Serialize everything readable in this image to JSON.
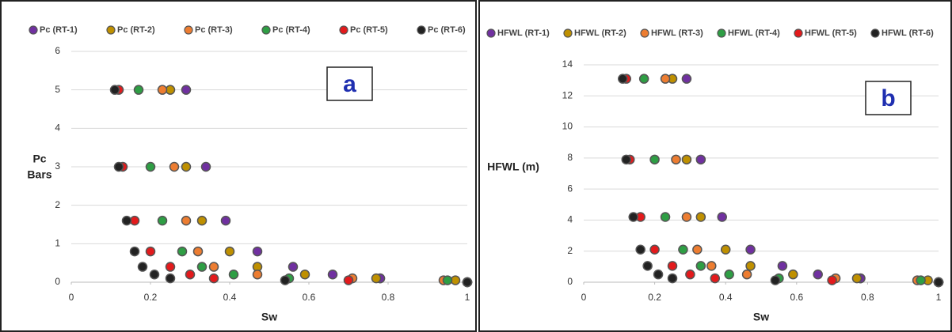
{
  "chart_data": [
    {
      "type": "scatter",
      "annotation": "a",
      "xlabel": "Sw",
      "ylabel": [
        "Pc",
        "Bars"
      ],
      "xlim": [
        0,
        1
      ],
      "xticks": [
        0,
        0.2,
        0.4,
        0.6,
        0.8,
        1
      ],
      "ylim": [
        0,
        6
      ],
      "yticks": [
        0,
        1,
        2,
        3,
        4,
        5,
        6
      ],
      "grid": true,
      "series": [
        {
          "name": "Pc (RT-1)",
          "color": "#7030a0",
          "x": [
            0.29,
            0.34,
            0.39,
            0.47,
            0.56,
            0.66,
            0.78,
            0.78,
            1.0
          ],
          "values": [
            5,
            3,
            1.6,
            0.8,
            0.4,
            0.2,
            0.1,
            0.1,
            0
          ]
        },
        {
          "name": "Pc (RT-2)",
          "color": "#bf9000",
          "x": [
            0.25,
            0.29,
            0.33,
            0.4,
            0.47,
            0.59,
            0.77,
            0.97,
            1.0
          ],
          "values": [
            5,
            3,
            1.6,
            0.8,
            0.4,
            0.2,
            0.1,
            0.05,
            0
          ]
        },
        {
          "name": "Pc (RT-3)",
          "color": "#ed7d31",
          "x": [
            0.23,
            0.26,
            0.29,
            0.32,
            0.36,
            0.47,
            0.71,
            0.94,
            1.0
          ],
          "values": [
            5,
            3,
            1.6,
            0.8,
            0.4,
            0.2,
            0.1,
            0.05,
            0
          ]
        },
        {
          "name": "Pc (RT-4)",
          "color": "#2e9e44",
          "x": [
            0.17,
            0.2,
            0.23,
            0.28,
            0.33,
            0.41,
            0.55,
            0.95,
            1.0
          ],
          "values": [
            5,
            3,
            1.6,
            0.8,
            0.4,
            0.2,
            0.1,
            0.05,
            0
          ]
        },
        {
          "name": "Pc (RT-5)",
          "color": "#e31a1c",
          "x": [
            0.12,
            0.13,
            0.16,
            0.2,
            0.25,
            0.3,
            0.36,
            0.7,
            1.0
          ],
          "values": [
            5,
            3,
            1.6,
            0.8,
            0.4,
            0.2,
            0.1,
            0.05,
            0
          ]
        },
        {
          "name": "Pc (RT-6)",
          "color": "#222222",
          "x": [
            0.11,
            0.12,
            0.14,
            0.16,
            0.18,
            0.21,
            0.25,
            0.54,
            1.0
          ],
          "values": [
            5,
            3,
            1.6,
            0.8,
            0.4,
            0.2,
            0.1,
            0.05,
            0
          ]
        }
      ]
    },
    {
      "type": "scatter",
      "annotation": "b",
      "xlabel": "Sw",
      "ylabel": [
        "HFWL (m)"
      ],
      "xlim": [
        0,
        1
      ],
      "xticks": [
        0,
        0.2,
        0.4,
        0.6,
        0.8,
        1
      ],
      "ylim": [
        0,
        14
      ],
      "yticks": [
        0,
        2,
        4,
        6,
        8,
        10,
        12,
        14
      ],
      "grid": true,
      "series": [
        {
          "name": "HFWL (RT-1)",
          "color": "#7030a0",
          "x": [
            0.29,
            0.33,
            0.39,
            0.47,
            0.56,
            0.66,
            0.78,
            0.78,
            1.0
          ],
          "values": [
            13.1,
            7.9,
            4.2,
            2.1,
            1.05,
            0.5,
            0.25,
            0.25,
            0
          ]
        },
        {
          "name": "HFWL (RT-2)",
          "color": "#bf9000",
          "x": [
            0.25,
            0.29,
            0.33,
            0.4,
            0.47,
            0.59,
            0.77,
            0.97,
            1.0
          ],
          "values": [
            13.1,
            7.9,
            4.2,
            2.1,
            1.05,
            0.5,
            0.25,
            0.12,
            0
          ]
        },
        {
          "name": "HFWL (RT-3)",
          "color": "#ed7d31",
          "x": [
            0.23,
            0.26,
            0.29,
            0.32,
            0.36,
            0.46,
            0.71,
            0.94,
            1.0
          ],
          "values": [
            13.1,
            7.9,
            4.2,
            2.1,
            1.05,
            0.5,
            0.25,
            0.12,
            0
          ]
        },
        {
          "name": "HFWL (RT-4)",
          "color": "#2e9e44",
          "x": [
            0.17,
            0.2,
            0.23,
            0.28,
            0.33,
            0.41,
            0.55,
            0.95,
            1.0
          ],
          "values": [
            13.1,
            7.9,
            4.2,
            2.1,
            1.05,
            0.5,
            0.25,
            0.12,
            0
          ]
        },
        {
          "name": "HFWL (RT-5)",
          "color": "#e31a1c",
          "x": [
            0.12,
            0.13,
            0.16,
            0.2,
            0.25,
            0.3,
            0.37,
            0.7,
            1.0
          ],
          "values": [
            13.1,
            7.9,
            4.2,
            2.1,
            1.05,
            0.5,
            0.25,
            0.12,
            0
          ]
        },
        {
          "name": "HFWL (RT-6)",
          "color": "#222222",
          "x": [
            0.11,
            0.12,
            0.14,
            0.16,
            0.18,
            0.21,
            0.25,
            0.54,
            1.0
          ],
          "values": [
            13.1,
            7.9,
            4.2,
            2.1,
            1.05,
            0.5,
            0.25,
            0.12,
            0
          ]
        }
      ]
    }
  ]
}
